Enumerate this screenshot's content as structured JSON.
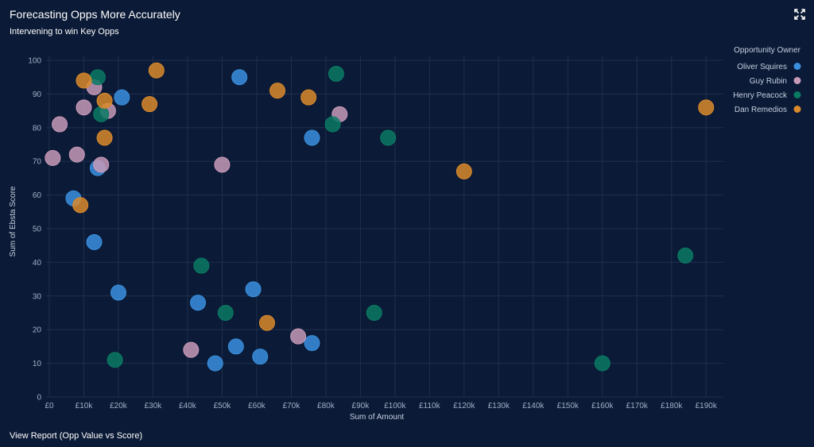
{
  "header": {
    "title": "Forecasting Opps More Accurately",
    "subtitle": "Intervening to win Key Opps",
    "expand_icon": "expand-icon"
  },
  "footer": {
    "link_label": "View Report (Opp Value vs Score)"
  },
  "chart_data": {
    "type": "scatter",
    "title": "Forecasting Opps More Accurately",
    "subtitle": "Intervening to win Key Opps",
    "xlabel": "Sum of Amount",
    "ylabel": "Sum of Ebsta Score",
    "xlim": [
      0,
      195000
    ],
    "ylim": [
      0,
      100
    ],
    "x_ticks": [
      0,
      10000,
      20000,
      30000,
      40000,
      50000,
      60000,
      70000,
      80000,
      90000,
      100000,
      110000,
      120000,
      130000,
      140000,
      150000,
      160000,
      170000,
      180000,
      190000
    ],
    "x_tick_labels": [
      "£0",
      "£10k",
      "£20k",
      "£30k",
      "£40k",
      "£50k",
      "£60k",
      "£70k",
      "£80k",
      "£90k",
      "£100k",
      "£110k",
      "£120k",
      "£130k",
      "£140k",
      "£150k",
      "£160k",
      "£170k",
      "£180k",
      "£190k"
    ],
    "y_ticks": [
      0,
      10,
      20,
      30,
      40,
      50,
      60,
      70,
      80,
      90,
      100
    ],
    "y_tick_labels": [
      "0",
      "10",
      "20",
      "30",
      "40",
      "50",
      "60",
      "70",
      "80",
      "90",
      "100"
    ],
    "grid": true,
    "legend_title": "Opportunity Owner",
    "legend_position": "top-right",
    "series": [
      {
        "name": "Oliver Squires",
        "color": "#3a8fde",
        "points": [
          [
            55000,
            95
          ],
          [
            21000,
            89
          ],
          [
            14000,
            68
          ],
          [
            7000,
            59
          ],
          [
            13000,
            46
          ],
          [
            76000,
            77
          ],
          [
            20000,
            31
          ],
          [
            43000,
            28
          ],
          [
            59000,
            32
          ],
          [
            54000,
            15
          ],
          [
            48000,
            10
          ],
          [
            61000,
            12
          ],
          [
            76000,
            16
          ]
        ]
      },
      {
        "name": "Guy Rubin",
        "color": "#c79ab8",
        "points": [
          [
            13000,
            92
          ],
          [
            10000,
            86
          ],
          [
            17000,
            85
          ],
          [
            3000,
            81
          ],
          [
            1000,
            71
          ],
          [
            8000,
            72
          ],
          [
            15000,
            69
          ],
          [
            50000,
            69
          ],
          [
            84000,
            84
          ],
          [
            41000,
            14
          ],
          [
            72000,
            18
          ]
        ]
      },
      {
        "name": "Henry Peacock",
        "color": "#0b7a63",
        "points": [
          [
            14000,
            95
          ],
          [
            15000,
            84
          ],
          [
            83000,
            96
          ],
          [
            82000,
            81
          ],
          [
            98000,
            77
          ],
          [
            44000,
            39
          ],
          [
            51000,
            25
          ],
          [
            94000,
            25
          ],
          [
            19000,
            11
          ],
          [
            184000,
            42
          ],
          [
            160000,
            10
          ]
        ]
      },
      {
        "name": "Dan Remedios",
        "color": "#d98a2b",
        "points": [
          [
            10000,
            94
          ],
          [
            31000,
            97
          ],
          [
            16000,
            88
          ],
          [
            29000,
            87
          ],
          [
            66000,
            91
          ],
          [
            75000,
            89
          ],
          [
            16000,
            77
          ],
          [
            9000,
            57
          ],
          [
            120000,
            67
          ],
          [
            63000,
            22
          ],
          [
            190000,
            86
          ]
        ]
      }
    ]
  }
}
